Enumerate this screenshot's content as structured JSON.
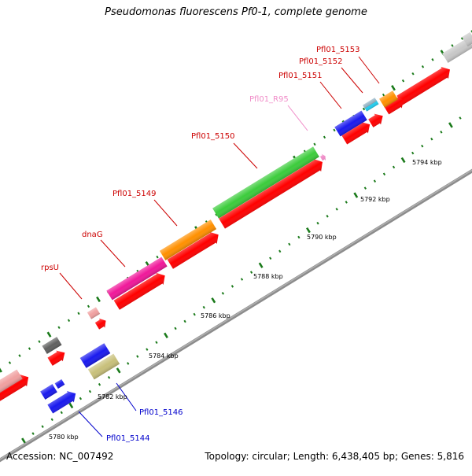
{
  "title": "Pseudomonas fluorescens Pf0-1, complete genome",
  "footer": {
    "accession": "Accession: NC_007492",
    "summary": "Topology: circular; Length: 6,438,405 bp; Genes: 5,816"
  },
  "tick_labels": [
    "5780 kbp",
    "5782 kbp",
    "5784 kbp",
    "5786 kbp",
    "5788 kbp",
    "5790 kbp",
    "5792 kbp",
    "5794 kbp"
  ],
  "gene_labels": [
    {
      "text": "Pfl01_5153",
      "color": "#cc0000"
    },
    {
      "text": "Pfl01_5152",
      "color": "#cc0000"
    },
    {
      "text": "Pfl01_5151",
      "color": "#cc0000"
    },
    {
      "text": "Pfl01_R95",
      "color": "#f08cc8"
    },
    {
      "text": "Pfl01_5150",
      "color": "#cc0000"
    },
    {
      "text": "Pfl01_5149",
      "color": "#cc0000"
    },
    {
      "text": "dnaG",
      "color": "#cc0000"
    },
    {
      "text": "rpsU",
      "color": "#cc0000"
    },
    {
      "text": "Pfl01_5146",
      "color": "#0000cc"
    },
    {
      "text": "Pfl01_5144",
      "color": "#0000cc"
    }
  ],
  "colors": {
    "backbone": "#8c8c8c",
    "cds_forward": "#ff0000",
    "tick": "#1a7a1a",
    "rna_pink": "#f08cc8",
    "green_gene": "#3ccc3c",
    "orange_gene": "#ff9000",
    "magenta_gene": "#f0189a",
    "blue_gene": "#1a1aee",
    "cyan_gene": "#22ccee",
    "khaki_gene": "#c8c07a",
    "gray_gene": "#c8c8c8",
    "dark_gray_gene": "#606060",
    "salmon_gene": "#f0a0a0"
  }
}
